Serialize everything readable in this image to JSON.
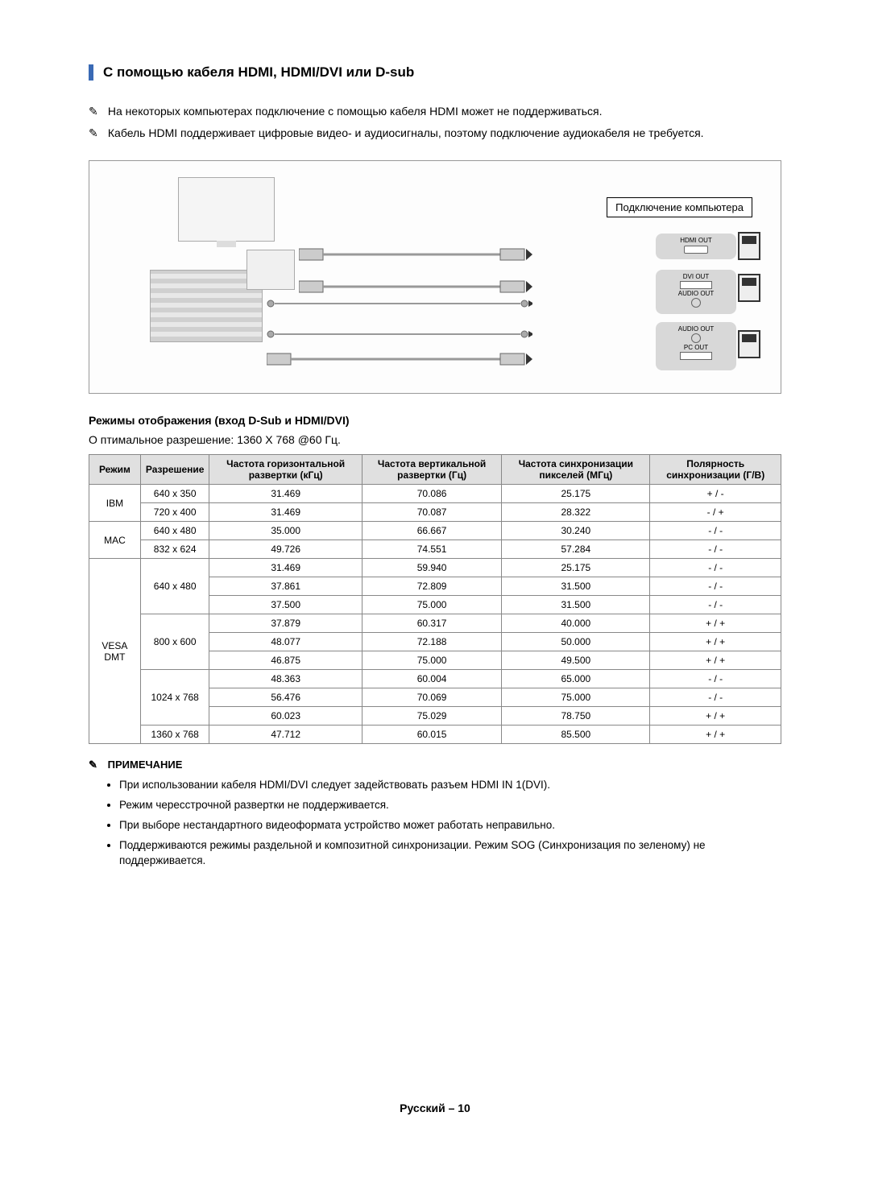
{
  "section_title": "С помощью кабеля HDMI, HDMI/DVI или D-sub",
  "note1": "На некоторых компьютерах подключение с помощью кабеля HDMI может не поддерживаться.",
  "note2": "Кабель HDMI поддерживает цифровые видео- и аудиосигналы, поэтому подключение аудиокабеля не требуется.",
  "note_icon": "✎",
  "diagram": {
    "panel_label": "Подключение компьютера",
    "ports": {
      "hdmi": "HDMI OUT",
      "dvi": "DVI OUT",
      "audio1": "AUDIO OUT",
      "audio2": "AUDIO OUT",
      "pc": "PC OUT"
    }
  },
  "modes_section_title": "Режимы отображения (вход D-Sub и HDMI/DVI)",
  "optimal_resolution": "О птимальное разрешение: 1360 X 768 @60 Гц.",
  "table": {
    "headers": {
      "mode": "Режим",
      "resolution": "Разрешение",
      "hfreq": "Частота горизонтальной развертки (кГц)",
      "vfreq": "Частота вертикальной развертки (Гц)",
      "pixfreq": "Частота синхронизации пикселей (МГц)",
      "polarity": "Полярность синхронизации (Г/В)"
    },
    "groups": [
      {
        "mode": "IBM",
        "rows": [
          {
            "res": "640 x 350",
            "h": "31.469",
            "v": "70.086",
            "p": "25.175",
            "pol": "+ / -"
          },
          {
            "res": "720 x 400",
            "h": "31.469",
            "v": "70.087",
            "p": "28.322",
            "pol": "- / +"
          }
        ]
      },
      {
        "mode": "MAC",
        "rows": [
          {
            "res": "640 x 480",
            "h": "35.000",
            "v": "66.667",
            "p": "30.240",
            "pol": "- / -"
          },
          {
            "res": "832 x 624",
            "h": "49.726",
            "v": "74.551",
            "p": "57.284",
            "pol": "- / -"
          }
        ]
      },
      {
        "mode": "VESA DMT",
        "subgroups": [
          {
            "res": "640 x 480",
            "rows": [
              {
                "h": "31.469",
                "v": "59.940",
                "p": "25.175",
                "pol": "- / -"
              },
              {
                "h": "37.861",
                "v": "72.809",
                "p": "31.500",
                "pol": "- / -"
              },
              {
                "h": "37.500",
                "v": "75.000",
                "p": "31.500",
                "pol": "- / -"
              }
            ]
          },
          {
            "res": "800 x 600",
            "rows": [
              {
                "h": "37.879",
                "v": "60.317",
                "p": "40.000",
                "pol": "+ / +"
              },
              {
                "h": "48.077",
                "v": "72.188",
                "p": "50.000",
                "pol": "+ / +"
              },
              {
                "h": "46.875",
                "v": "75.000",
                "p": "49.500",
                "pol": "+ / +"
              }
            ]
          },
          {
            "res": "1024 x 768",
            "rows": [
              {
                "h": "48.363",
                "v": "60.004",
                "p": "65.000",
                "pol": "- / -"
              },
              {
                "h": "56.476",
                "v": "70.069",
                "p": "75.000",
                "pol": "- / -"
              },
              {
                "h": "60.023",
                "v": "75.029",
                "p": "78.750",
                "pol": "+ / +"
              }
            ]
          },
          {
            "res": "1360 x 768",
            "rows": [
              {
                "h": "47.712",
                "v": "60.015",
                "p": "85.500",
                "pol": "+ / +"
              }
            ]
          }
        ]
      }
    ]
  },
  "notes": {
    "title": "ПРИМЕЧАНИЕ",
    "items": [
      "При использовании кабеля HDMI/DVI следует задействовать разъем HDMI IN 1(DVI).",
      "Режим чересстрочной развертки не поддерживается.",
      "При выборе нестандартного видеоформата устройство может работать неправильно.",
      "Поддерживаются режимы раздельной и композитной синхронизации.  Режим SOG (Синхронизация по зеленому) не поддерживается."
    ]
  },
  "footer": "Русский – 10",
  "colors": {
    "accent": "#3a6ab5",
    "border": "#888888",
    "th_bg": "#e0e0e0"
  }
}
